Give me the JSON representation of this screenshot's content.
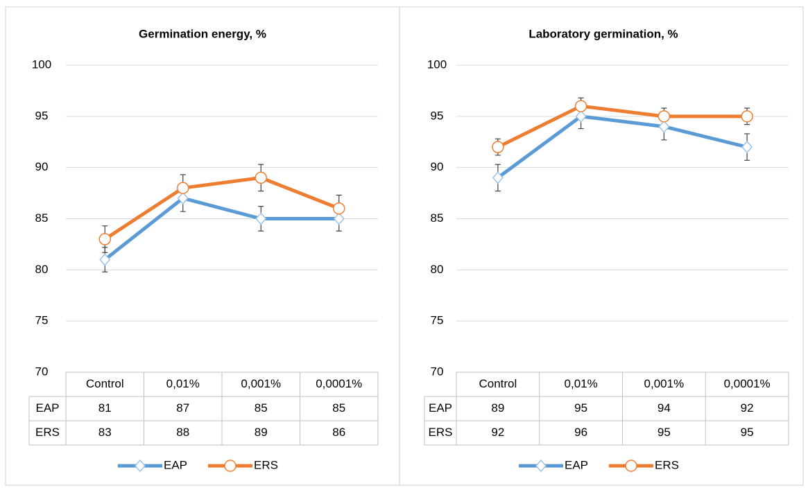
{
  "chart_data": [
    {
      "type": "line",
      "title": "Germination energy, %",
      "categories": [
        "Control",
        "0,01%",
        "0,001%",
        "0,0001%"
      ],
      "series": [
        {
          "name": "EAP",
          "color": "#5b9bd5",
          "marker": "diamond",
          "values": [
            81,
            87,
            85,
            85
          ],
          "errors": [
            1.2,
            1.3,
            1.2,
            1.2
          ]
        },
        {
          "name": "ERS",
          "color": "#ed7d31",
          "marker": "circle",
          "values": [
            83,
            88,
            89,
            86
          ],
          "errors": [
            1.3,
            1.3,
            1.3,
            1.3
          ]
        }
      ],
      "ylim": [
        70,
        100
      ],
      "yticks": [
        70,
        75,
        80,
        85,
        90,
        95,
        100
      ],
      "grid": true
    },
    {
      "type": "line",
      "title": "Laboratory germination, %",
      "categories": [
        "Control",
        "0,01%",
        "0,001%",
        "0,0001%"
      ],
      "series": [
        {
          "name": "EAP",
          "color": "#5b9bd5",
          "marker": "diamond",
          "values": [
            89,
            95,
            94,
            92
          ],
          "errors": [
            1.3,
            1.2,
            1.3,
            1.3
          ]
        },
        {
          "name": "ERS",
          "color": "#ed7d31",
          "marker": "circle",
          "values": [
            92,
            96,
            95,
            95
          ],
          "errors": [
            0.8,
            0.8,
            0.8,
            0.8
          ]
        }
      ],
      "ylim": [
        70,
        100
      ],
      "yticks": [
        70,
        75,
        80,
        85,
        90,
        95,
        100
      ],
      "grid": true
    }
  ]
}
